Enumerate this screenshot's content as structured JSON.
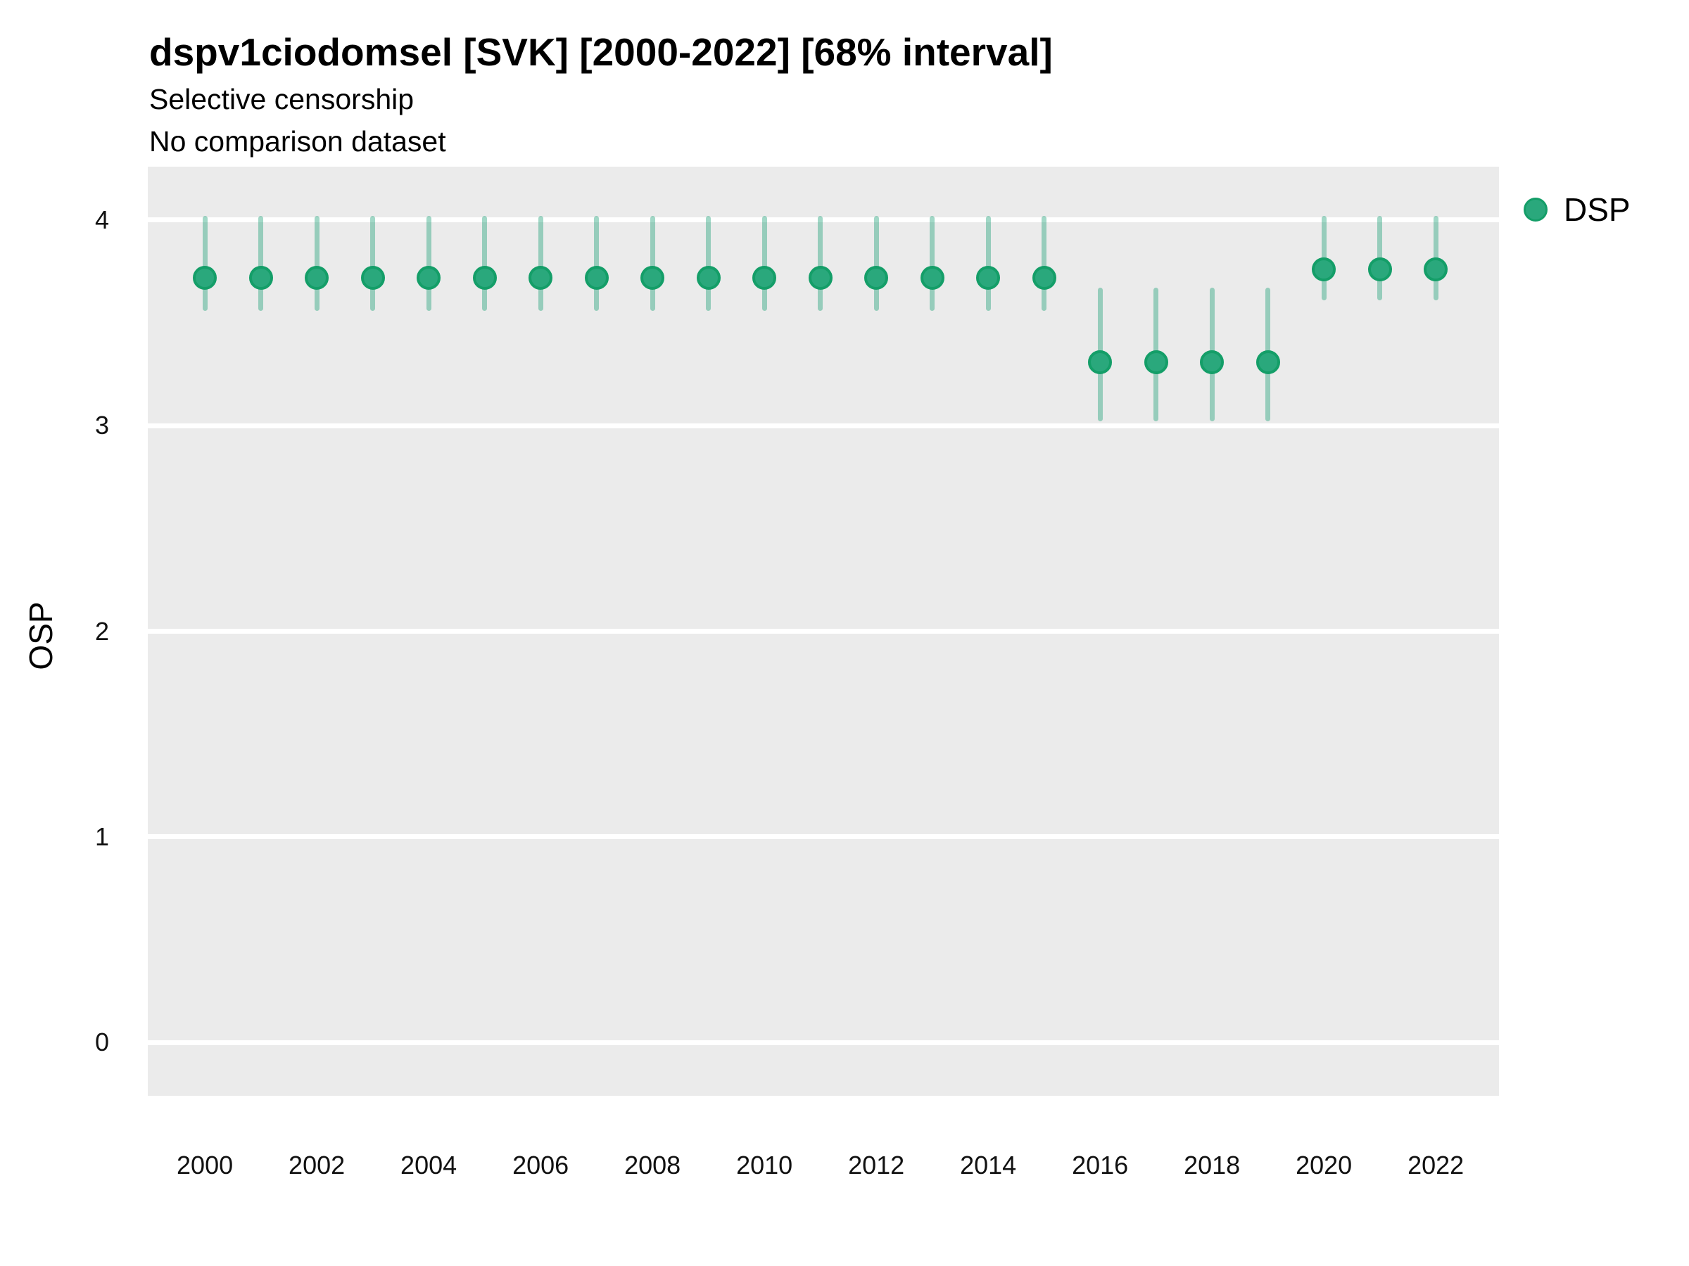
{
  "chart_data": {
    "type": "pointrange",
    "title": "dspv1ciodomsel [SVK] [2000-2022] [68% interval]",
    "subtitle_line1": "Selective censorship",
    "subtitle_line2": "No comparison dataset",
    "xlabel": "",
    "ylabel": "OSP",
    "x_ticks": [
      2000,
      2002,
      2004,
      2006,
      2008,
      2010,
      2012,
      2014,
      2016,
      2018,
      2020,
      2022
    ],
    "y_ticks": [
      0,
      1,
      2,
      3,
      4
    ],
    "xlim": [
      1998.98,
      2023.13
    ],
    "ylim": [
      -0.26,
      4.26
    ],
    "grid": "horizontal-major-only",
    "legend": {
      "position": "right",
      "entries": [
        {
          "label": "DSP",
          "color": "#2AA87C"
        }
      ]
    },
    "series": [
      {
        "name": "DSP",
        "points": [
          {
            "x": 2000,
            "y": 3.72,
            "lo": 3.56,
            "hi": 4.02
          },
          {
            "x": 2001,
            "y": 3.72,
            "lo": 3.56,
            "hi": 4.02
          },
          {
            "x": 2002,
            "y": 3.72,
            "lo": 3.56,
            "hi": 4.02
          },
          {
            "x": 2003,
            "y": 3.72,
            "lo": 3.56,
            "hi": 4.02
          },
          {
            "x": 2004,
            "y": 3.72,
            "lo": 3.56,
            "hi": 4.02
          },
          {
            "x": 2005,
            "y": 3.72,
            "lo": 3.56,
            "hi": 4.02
          },
          {
            "x": 2006,
            "y": 3.72,
            "lo": 3.56,
            "hi": 4.02
          },
          {
            "x": 2007,
            "y": 3.72,
            "lo": 3.56,
            "hi": 4.02
          },
          {
            "x": 2008,
            "y": 3.72,
            "lo": 3.56,
            "hi": 4.02
          },
          {
            "x": 2009,
            "y": 3.72,
            "lo": 3.56,
            "hi": 4.02
          },
          {
            "x": 2010,
            "y": 3.72,
            "lo": 3.56,
            "hi": 4.02
          },
          {
            "x": 2011,
            "y": 3.72,
            "lo": 3.56,
            "hi": 4.02
          },
          {
            "x": 2012,
            "y": 3.72,
            "lo": 3.56,
            "hi": 4.02
          },
          {
            "x": 2013,
            "y": 3.72,
            "lo": 3.56,
            "hi": 4.02
          },
          {
            "x": 2014,
            "y": 3.72,
            "lo": 3.56,
            "hi": 4.02
          },
          {
            "x": 2015,
            "y": 3.72,
            "lo": 3.56,
            "hi": 4.02
          },
          {
            "x": 2016,
            "y": 3.31,
            "lo": 3.02,
            "hi": 3.67
          },
          {
            "x": 2017,
            "y": 3.31,
            "lo": 3.02,
            "hi": 3.67
          },
          {
            "x": 2018,
            "y": 3.31,
            "lo": 3.02,
            "hi": 3.67
          },
          {
            "x": 2019,
            "y": 3.31,
            "lo": 3.02,
            "hi": 3.67
          },
          {
            "x": 2020,
            "y": 3.76,
            "lo": 3.61,
            "hi": 4.02
          },
          {
            "x": 2021,
            "y": 3.76,
            "lo": 3.61,
            "hi": 4.02
          },
          {
            "x": 2022,
            "y": 3.76,
            "lo": 3.61,
            "hi": 4.02
          }
        ]
      }
    ],
    "colors": {
      "point_fill": "#2AA87C",
      "point_stroke": "#149E68",
      "interval": "rgba(33,161,121,0.42)",
      "panel_bg": "#EBEBEB",
      "gridline": "#FFFFFF",
      "text": "#000000"
    }
  }
}
